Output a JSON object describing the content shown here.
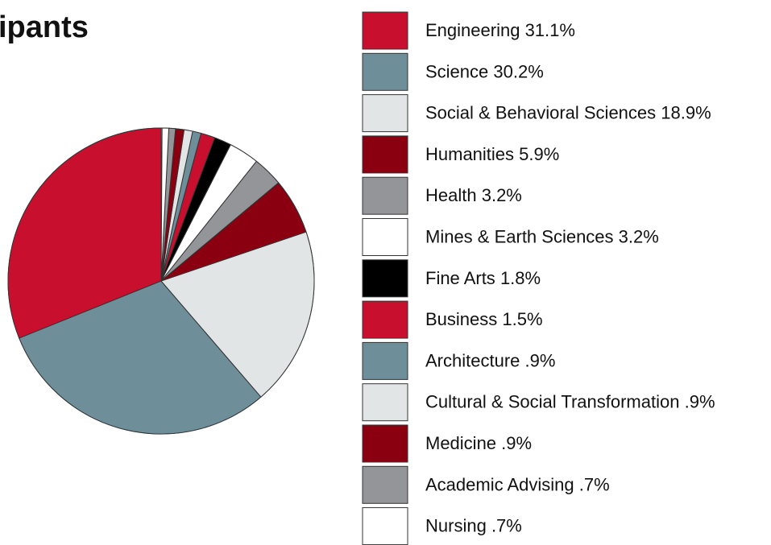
{
  "chart_data": {
    "type": "pie",
    "title": "ipants",
    "categories": [
      "Engineering",
      "Science",
      "Social & Behavioral Sciences",
      "Humanities",
      "Health",
      "Mines & Earth Sciences",
      "Fine Arts",
      "Business",
      "Architecture",
      "Cultural & Social Transformation",
      "Medicine",
      "Academic Advising",
      "Nursing"
    ],
    "values": [
      31.1,
      30.2,
      18.9,
      5.9,
      3.2,
      3.2,
      1.8,
      1.5,
      0.9,
      0.9,
      0.9,
      0.7,
      0.7
    ],
    "value_labels": [
      "31.1%",
      "30.2%",
      "18.9%",
      "5.9%",
      "3.2%",
      "3.2%",
      "1.8%",
      "1.5%",
      ".9%",
      ".9%",
      ".9%",
      ".7%",
      ".7%"
    ],
    "colors": [
      "#c8102e",
      "#6e8e9a",
      "#e2e5e6",
      "#8b0011",
      "#939598",
      "#ffffff",
      "#000000",
      "#c8102e",
      "#6e8e9a",
      "#e2e5e6",
      "#8b0011",
      "#939598",
      "#ffffff"
    ]
  }
}
